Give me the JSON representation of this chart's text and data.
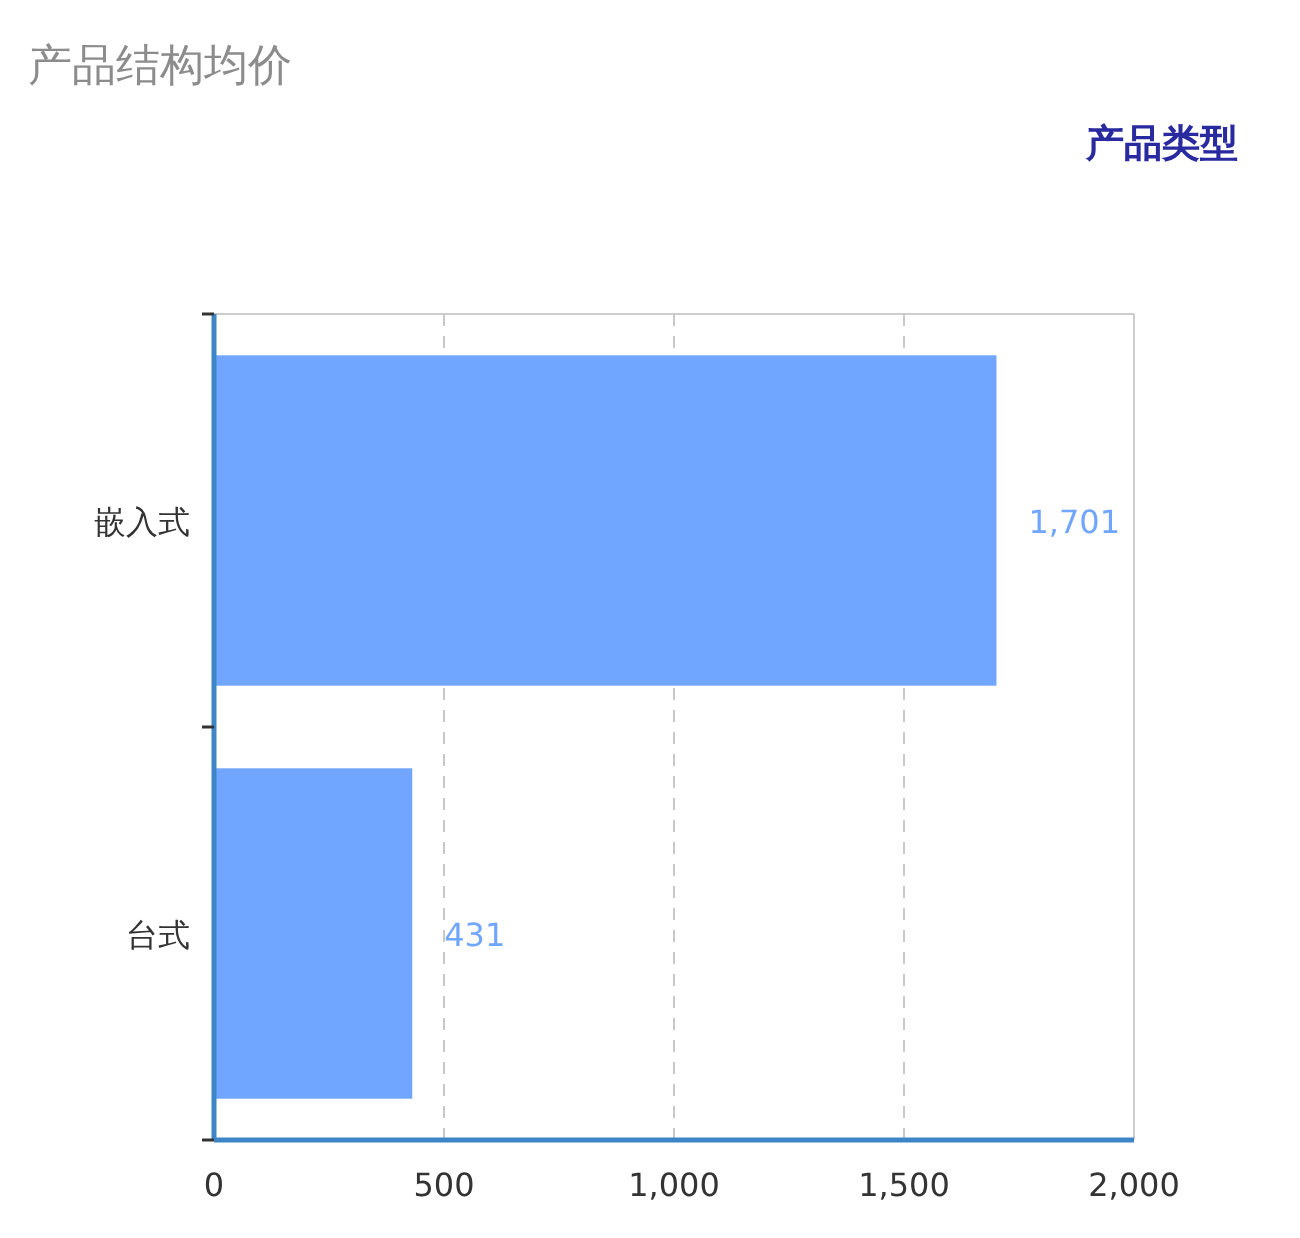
{
  "chart_data": {
    "type": "bar",
    "orientation": "horizontal",
    "title": "产品结构均价",
    "ylabel": "产品类型",
    "categories": [
      "嵌入式",
      "台式"
    ],
    "values": [
      1701,
      431
    ],
    "value_labels": [
      "1,701",
      "431"
    ],
    "color": "#70a6ff",
    "xlim": [
      0,
      2000
    ],
    "xticks": [
      0,
      500,
      {
        "value": 1000,
        "label": "1,000"
      },
      {
        "value": 1500,
        "label": "1,500"
      },
      {
        "value": 2000,
        "label": "2,000"
      }
    ],
    "grid": "x"
  }
}
